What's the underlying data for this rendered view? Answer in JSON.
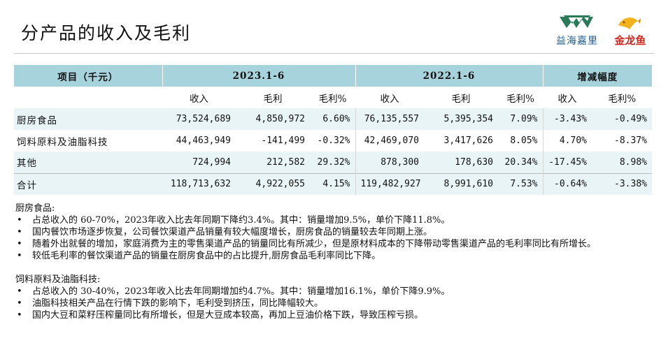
{
  "page": {
    "title": "分产品的收入及毛利"
  },
  "logos": {
    "yihai_text": "益海嘉里",
    "jinlongyu_text": "金龙鱼",
    "yihai_color": "#1f5b8c",
    "jinlongyu_color": "#d2261e"
  },
  "table": {
    "header_item": "项目（千元）",
    "group_2023": "2023.1-6",
    "group_2022": "2022.1-6",
    "group_change": "增减幅度",
    "col_revenue": "收入",
    "col_gross": "毛利",
    "col_margin": "毛利%",
    "rows": [
      {
        "item": "厨房食品",
        "rev23": "73,524,689",
        "gp23": "4,850,972",
        "gm23": "6.60%",
        "rev22": "76,135,557",
        "gp22": "5,395,354",
        "gm22": "7.09%",
        "chg_rev": "-3.43%",
        "chg_gm": "-0.49%"
      },
      {
        "item": "饲料原料及油脂科技",
        "rev23": "44,463,949",
        "gp23": "-141,499",
        "gm23": "-0.32%",
        "rev22": "42,469,070",
        "gp22": "3,417,626",
        "gm22": "8.05%",
        "chg_rev": "4.70%",
        "chg_gm": "-8.37%"
      },
      {
        "item": "其他",
        "rev23": "724,994",
        "gp23": "212,582",
        "gm23": "29.32%",
        "rev22": "878,300",
        "gp22": "178,630",
        "gm22": "20.34%",
        "chg_rev": "-17.45%",
        "chg_gm": "8.98%"
      },
      {
        "item": "合计",
        "rev23": "118,713,632",
        "gp23": "4,922,055",
        "gm23": "4.15%",
        "rev22": "119,482,927",
        "gp22": "8,991,610",
        "gm22": "7.53%",
        "chg_rev": "-0.64%",
        "chg_gm": "-3.38%"
      }
    ],
    "header_color": "#a7d3dc",
    "stripe_color": "#e9f4f6"
  },
  "notes": {
    "kitchen_title": "厨房食品:",
    "kitchen_bullets": [
      "占总收入的 60-70%，2023年收入比去年同期下降约3.4%。其中：销量增加9.5%，单价下降11.8%。",
      "国内餐饮市场逐步恢复，公司餐饮渠道产品销量有较大幅度增长，厨房食品的销量较去年同期上涨。",
      "随着外出就餐的增加，家庭消费为主的零售渠道产品的销量同比有所减少，但是原材料成本的下降带动零售渠道产品的毛利率同比有所增长。",
      "较低毛利率的餐饮渠道产品的销量在厨房食品中的占比提升,厨房食品毛利率同比下降。"
    ],
    "feed_title": "饲料原料及油脂科技:",
    "feed_bullets": [
      "占总收入的 30-40%，2023年收入比去年同期增加约4.7%。其中：销量增加16.1%，单价下降9.9%。",
      "油脂科技相关产品在行情下跌的影响下，毛利受到挤压，同比降幅较大。",
      "国内大豆和菜籽压榨量同比有所增长，但是大豆成本较高，再加上豆油价格下跌，导致压榨亏损。"
    ],
    "bullet_glyph": "•"
  }
}
